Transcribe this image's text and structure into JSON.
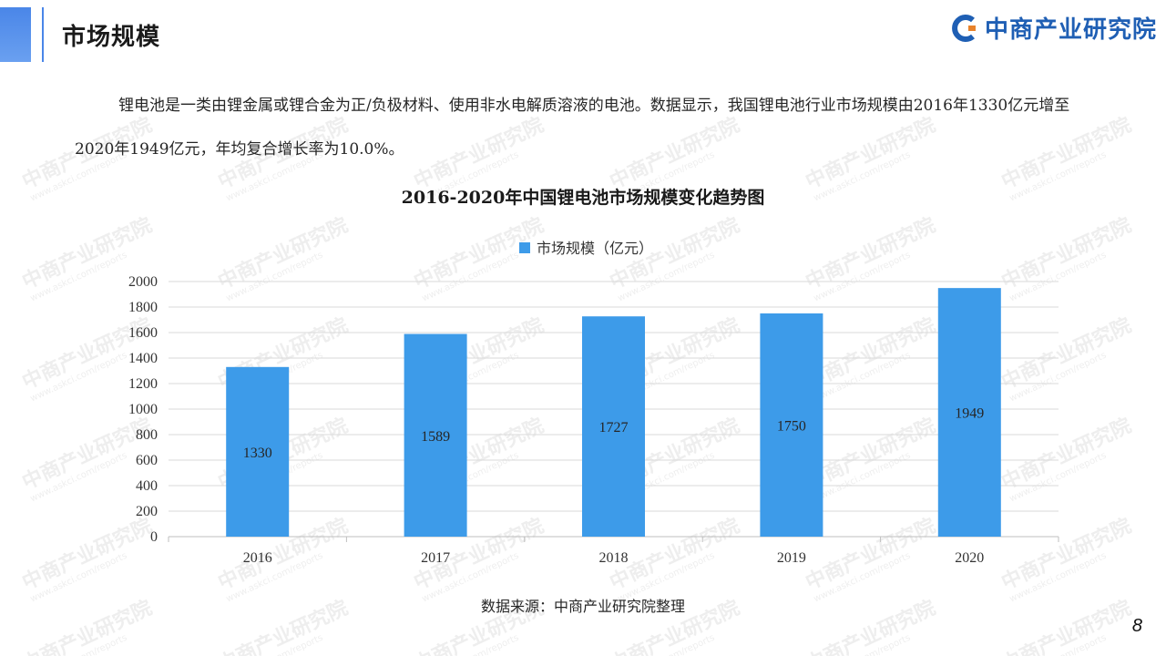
{
  "header": {
    "title": "市场规模",
    "brand": "中商产业研究院"
  },
  "intro": {
    "text": "锂电池是一类由锂金属或锂合金为正/负极材料、使用非水电解质溶液的电池。数据显示，我国锂电池行业市场规模由2016年1330亿元增至2020年1949亿元，年均复合增长率为10.0%。"
  },
  "chart_data": {
    "type": "bar",
    "title": "2016-2020年中国锂电池市场规模变化趋势图",
    "categories": [
      "2016",
      "2017",
      "2018",
      "2019",
      "2020"
    ],
    "series": [
      {
        "name": "市场规模（亿元）",
        "values": [
          1330,
          1589,
          1727,
          1750,
          1949
        ]
      }
    ],
    "ylim": [
      0,
      2000
    ],
    "yticks": [
      0,
      200,
      400,
      600,
      800,
      1000,
      1200,
      1400,
      1600,
      1800,
      2000
    ],
    "grid": true,
    "legend": "top",
    "bar_color": "#3d9be9",
    "xlabel": "",
    "ylabel": ""
  },
  "footer": {
    "source": "数据来源：中商产业研究院整理",
    "page_number": "8"
  },
  "watermark": {
    "text": "中商产业研究院",
    "sub": "www.askci.com/reports"
  },
  "colors": {
    "accent": "#4a86e8",
    "brand": "#1f5fb4"
  }
}
